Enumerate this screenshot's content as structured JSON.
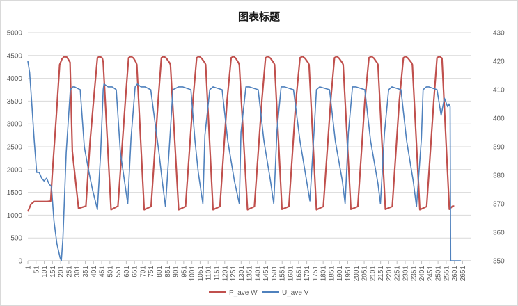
{
  "chart_data": {
    "type": "line",
    "title": "图表标题",
    "legend_position": "bottom",
    "grid": true,
    "colors": {
      "P_ave W": "#C0504D",
      "U_ave V": "#4F81BD"
    },
    "x_range": [
      1,
      2700
    ],
    "x_tick_labels": [
      "1",
      "51",
      "101",
      "151",
      "201",
      "251",
      "301",
      "351",
      "401",
      "451",
      "501",
      "551",
      "601",
      "651",
      "701",
      "751",
      "801",
      "851",
      "901",
      "951",
      "1001",
      "1051",
      "1101",
      "1151",
      "1201",
      "1251",
      "1301",
      "1351",
      "1401",
      "1451",
      "1501",
      "1551",
      "1601",
      "1651",
      "1701",
      "1751",
      "1801",
      "1851",
      "1901",
      "1951",
      "2001",
      "2051",
      "2101",
      "2151",
      "2201",
      "2251",
      "2301",
      "2351",
      "2401",
      "2451",
      "2501",
      "2551",
      "2601",
      "2651"
    ],
    "y_left": {
      "range": [
        0,
        5000
      ],
      "tick_labels": [
        "0",
        "500",
        "1000",
        "1500",
        "2000",
        "2500",
        "3000",
        "3500",
        "4000",
        "4500",
        "5000"
      ]
    },
    "y_right": {
      "range": [
        350,
        430
      ],
      "tick_labels": [
        "350",
        "360",
        "370",
        "380",
        "390",
        "400",
        "410",
        "420",
        "430"
      ]
    },
    "series": [
      {
        "name": "P_ave W",
        "axis": "left",
        "x": [
          1,
          20,
          40,
          80,
          120,
          140,
          150,
          175,
          195,
          210,
          225,
          240,
          258,
          272,
          310,
          355,
          380,
          405,
          425,
          440,
          455,
          460,
          508,
          550,
          595,
          615,
          630,
          645,
          660,
          665,
          710,
          752,
          795,
          815,
          830,
          845,
          865,
          870,
          920,
          962,
          1008,
          1030,
          1045,
          1060,
          1080,
          1085,
          1130,
          1172,
          1215,
          1240,
          1255,
          1268,
          1285,
          1290,
          1340,
          1382,
          1428,
          1450,
          1465,
          1480,
          1500,
          1505,
          1550,
          1592,
          1635,
          1660,
          1675,
          1690,
          1710,
          1715,
          1760,
          1802,
          1848,
          1870,
          1885,
          1898,
          1918,
          1923,
          1970,
          2012,
          2055,
          2080,
          2095,
          2110,
          2130,
          2135,
          2180,
          2222,
          2265,
          2290,
          2305,
          2318,
          2340,
          2345,
          2390,
          2432,
          2475,
          2495,
          2510,
          2525,
          2570,
          2590,
          2600
        ],
        "y": [
          1080,
          1240,
          1300,
          1300,
          1300,
          1310,
          1900,
          3200,
          4300,
          4430,
          4480,
          4460,
          4350,
          2400,
          1150,
          1200,
          2600,
          3650,
          4450,
          4480,
          4440,
          4360,
          1120,
          1200,
          3500,
          4450,
          4480,
          4440,
          4350,
          4300,
          1120,
          1190,
          3500,
          4450,
          4480,
          4440,
          4340,
          4300,
          1120,
          1190,
          3550,
          4450,
          4480,
          4440,
          4340,
          4300,
          1120,
          1190,
          3500,
          4450,
          4480,
          4440,
          4340,
          4300,
          1120,
          1190,
          3550,
          4450,
          4480,
          4440,
          4340,
          4300,
          1130,
          1190,
          3500,
          4450,
          4480,
          4440,
          4340,
          4300,
          1120,
          1190,
          3550,
          4450,
          4480,
          4440,
          4340,
          4300,
          1130,
          1190,
          3500,
          4450,
          4480,
          4440,
          4340,
          4300,
          1130,
          1190,
          3500,
          4450,
          4480,
          4440,
          4340,
          4300,
          1120,
          1190,
          3500,
          4450,
          4480,
          4440,
          1130,
          1200,
          1200
        ]
      },
      {
        "name": "U_ave V",
        "axis": "right",
        "x": [
          1,
          12,
          25,
          40,
          55,
          70,
          85,
          100,
          115,
          130,
          145,
          160,
          178,
          198,
          205,
          215,
          235,
          260,
          275,
          285,
          320,
          345,
          370,
          395,
          425,
          445,
          460,
          465,
          490,
          515,
          540,
          565,
          590,
          610,
          630,
          655,
          668,
          690,
          715,
          750,
          800,
          820,
          840,
          870,
          885,
          920,
          945,
          995,
          1020,
          1040,
          1068,
          1080,
          1110,
          1130,
          1185,
          1220,
          1260,
          1290,
          1300,
          1330,
          1350,
          1405,
          1440,
          1480,
          1500,
          1520,
          1545,
          1565,
          1620,
          1660,
          1700,
          1720,
          1745,
          1760,
          1780,
          1840,
          1875,
          1918,
          1935,
          1955,
          1980,
          2000,
          2055,
          2090,
          2135,
          2150,
          2175,
          2200,
          2220,
          2275,
          2310,
          2350,
          2370,
          2400,
          2410,
          2430,
          2445,
          2495,
          2520,
          2540,
          2560,
          2568,
          2575,
          2578
        ],
        "y": [
          420,
          416,
          405,
          392,
          381,
          381,
          379,
          378,
          379,
          377,
          376,
          364,
          356,
          351,
          350,
          358,
          388,
          410,
          411,
          411,
          410,
          390,
          382,
          375,
          368,
          388,
          410,
          412,
          411,
          411,
          410,
          388,
          378,
          370,
          393,
          411,
          412,
          411,
          411,
          410,
          388,
          378,
          369,
          396,
          410,
          411,
          411,
          410,
          392,
          381,
          370,
          394,
          410,
          411,
          410,
          392,
          378,
          370,
          395,
          411,
          411,
          410,
          392,
          378,
          370,
          396,
          411,
          411,
          410,
          392,
          378,
          371,
          395,
          410,
          411,
          410,
          392,
          378,
          370,
          395,
          411,
          411,
          410,
          392,
          377,
          370,
          395,
          410,
          411,
          410,
          392,
          378,
          369,
          393,
          410,
          411,
          411,
          410,
          401,
          407,
          404,
          405,
          404,
          350
        ],
        "tail_x": [
          2578,
          2640
        ],
        "tail_y": [
          350,
          350
        ]
      }
    ]
  }
}
